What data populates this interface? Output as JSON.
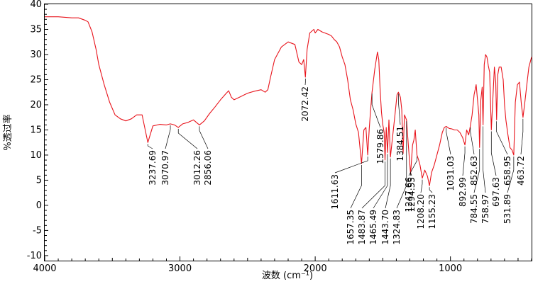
{
  "chart_data": {
    "type": "line",
    "xlabel": "波数 (cm⁻¹)",
    "ylabel": "%透过率",
    "xlim": [
      4000,
      400
    ],
    "ylim": [
      -11,
      40
    ],
    "x_ticks": [
      4000,
      3000,
      2000,
      1000
    ],
    "y_ticks": [
      -10,
      -5,
      0,
      5,
      10,
      15,
      20,
      25,
      30,
      35,
      40
    ],
    "line_color": "#e8141c",
    "series": [
      {
        "x": [
          4000,
          3900,
          3800,
          3750,
          3700,
          3680,
          3650,
          3620,
          3600,
          3560,
          3520,
          3480,
          3440,
          3400,
          3360,
          3320,
          3280,
          3237.69,
          3200,
          3150,
          3100,
          3070.97,
          3040,
          3012.26,
          2980,
          2940,
          2900,
          2856.06,
          2820,
          2780,
          2740,
          2700,
          2660,
          2640,
          2620,
          2600,
          2560,
          2500,
          2450,
          2400,
          2370,
          2350,
          2330,
          2300,
          2250,
          2200,
          2150,
          2120,
          2100,
          2085,
          2072.42,
          2060,
          2040,
          2010,
          2000,
          1980,
          1950,
          1900,
          1880,
          1860,
          1840,
          1820,
          1800,
          1780,
          1760,
          1740,
          1720,
          1700,
          1680,
          1657.35,
          1640,
          1625,
          1611.63,
          1600,
          1590,
          1579.86,
          1560,
          1540,
          1530,
          1520,
          1510,
          1500,
          1490,
          1483.87,
          1475,
          1465.49,
          1455,
          1443.7,
          1430,
          1410,
          1395,
          1384.51,
          1370,
          1360,
          1350,
          1340,
          1324.83,
          1310,
          1294.55,
          1280,
          1270,
          1260,
          1247.66,
          1235,
          1225,
          1208.2,
          1190,
          1170,
          1155.23,
          1140,
          1120,
          1100,
          1080,
          1060,
          1045,
          1031.03,
          1010,
          990,
          970,
          950,
          930,
          910,
          892.99,
          880,
          865,
          852.63,
          840,
          825,
          810,
          800,
          790,
          784.55,
          775,
          765,
          758.97,
          750,
          740,
          730,
          720,
          710,
          697.63,
          685,
          675,
          665,
          658.95,
          650,
          640,
          625,
          610,
          600,
          590,
          575,
          560,
          545,
          531.89,
          520,
          505,
          490,
          475,
          463.72,
          450,
          435,
          420,
          400
        ],
        "y": [
          37.5,
          37.5,
          37.3,
          37.3,
          36.8,
          36.5,
          34.5,
          31,
          28,
          24,
          20.5,
          18,
          17.2,
          16.8,
          17.2,
          18,
          18,
          12.5,
          15.8,
          16.1,
          16,
          16.2,
          16,
          15.5,
          16.2,
          16.5,
          17,
          16,
          16.8,
          18.3,
          19.6,
          21,
          22.2,
          22.8,
          21.5,
          21,
          21.5,
          22.3,
          22.7,
          23,
          22.5,
          23,
          25.5,
          29,
          31.5,
          32.5,
          32,
          28.5,
          28,
          29,
          25.5,
          31,
          34.3,
          35,
          34.3,
          35,
          34.5,
          34,
          33.7,
          33,
          32.5,
          31.5,
          29.5,
          28,
          25,
          21,
          19,
          16.2,
          14.5,
          8.3,
          15,
          15.5,
          10,
          15.3,
          19,
          22.5,
          27,
          30.5,
          29,
          23,
          18.5,
          16,
          14.5,
          9,
          15.5,
          10.5,
          17,
          9.6,
          13,
          18,
          22,
          22.5,
          21.5,
          19,
          10.3,
          18,
          17,
          11.5,
          6.2,
          12,
          13,
          15,
          10,
          9,
          8,
          5.4,
          7,
          5.8,
          3.9,
          6.5,
          8,
          10,
          12,
          14.5,
          15.5,
          15.7,
          15.3,
          15.2,
          15,
          15,
          14.5,
          13.5,
          12,
          15,
          14,
          15.8,
          18,
          22,
          24,
          21,
          18,
          11.5,
          21,
          23.5,
          16,
          28,
          30,
          29.5,
          27.8,
          26.5,
          15,
          22,
          27.5,
          24.5,
          17,
          26,
          27.5,
          27.5,
          25,
          20,
          17,
          14,
          11.5,
          11,
          10,
          20.5,
          24,
          24.5,
          20,
          17.5,
          20.5,
          24,
          27.5,
          29.5
        ]
      }
    ],
    "annotations": [
      {
        "x": 3237.69,
        "label": "3237.69"
      },
      {
        "x": 3070.97,
        "label": "3070.97"
      },
      {
        "x": 3012.26,
        "label": "3012.26"
      },
      {
        "x": 2856.06,
        "label": "2856.06"
      },
      {
        "x": 2072.42,
        "label": "2072.42"
      },
      {
        "x": 1657.35,
        "label": "1657.35"
      },
      {
        "x": 1611.63,
        "label": "1611.63"
      },
      {
        "x": 1579.86,
        "label": "1579.86"
      },
      {
        "x": 1483.87,
        "label": "1483.87"
      },
      {
        "x": 1465.49,
        "label": "1465.49"
      },
      {
        "x": 1443.7,
        "label": "1443.70"
      },
      {
        "x": 1384.51,
        "label": "1384.51"
      },
      {
        "x": 1324.83,
        "label": "1324.83"
      },
      {
        "x": 1294.55,
        "label": "1294.55"
      },
      {
        "x": 1247.66,
        "label": "1247.66"
      },
      {
        "x": 1208.2,
        "label": "1208.20"
      },
      {
        "x": 1155.23,
        "label": "1155.23"
      },
      {
        "x": 1031.03,
        "label": "1031.03"
      },
      {
        "x": 892.99,
        "label": "892.99"
      },
      {
        "x": 852.63,
        "label": "852.63"
      },
      {
        "x": 784.55,
        "label": "784.55"
      },
      {
        "x": 758.97,
        "label": "758.97"
      },
      {
        "x": 697.63,
        "label": "697.63"
      },
      {
        "x": 658.95,
        "label": "658.95"
      },
      {
        "x": 531.89,
        "label": "531.89"
      },
      {
        "x": 463.72,
        "label": "463.72"
      }
    ]
  }
}
